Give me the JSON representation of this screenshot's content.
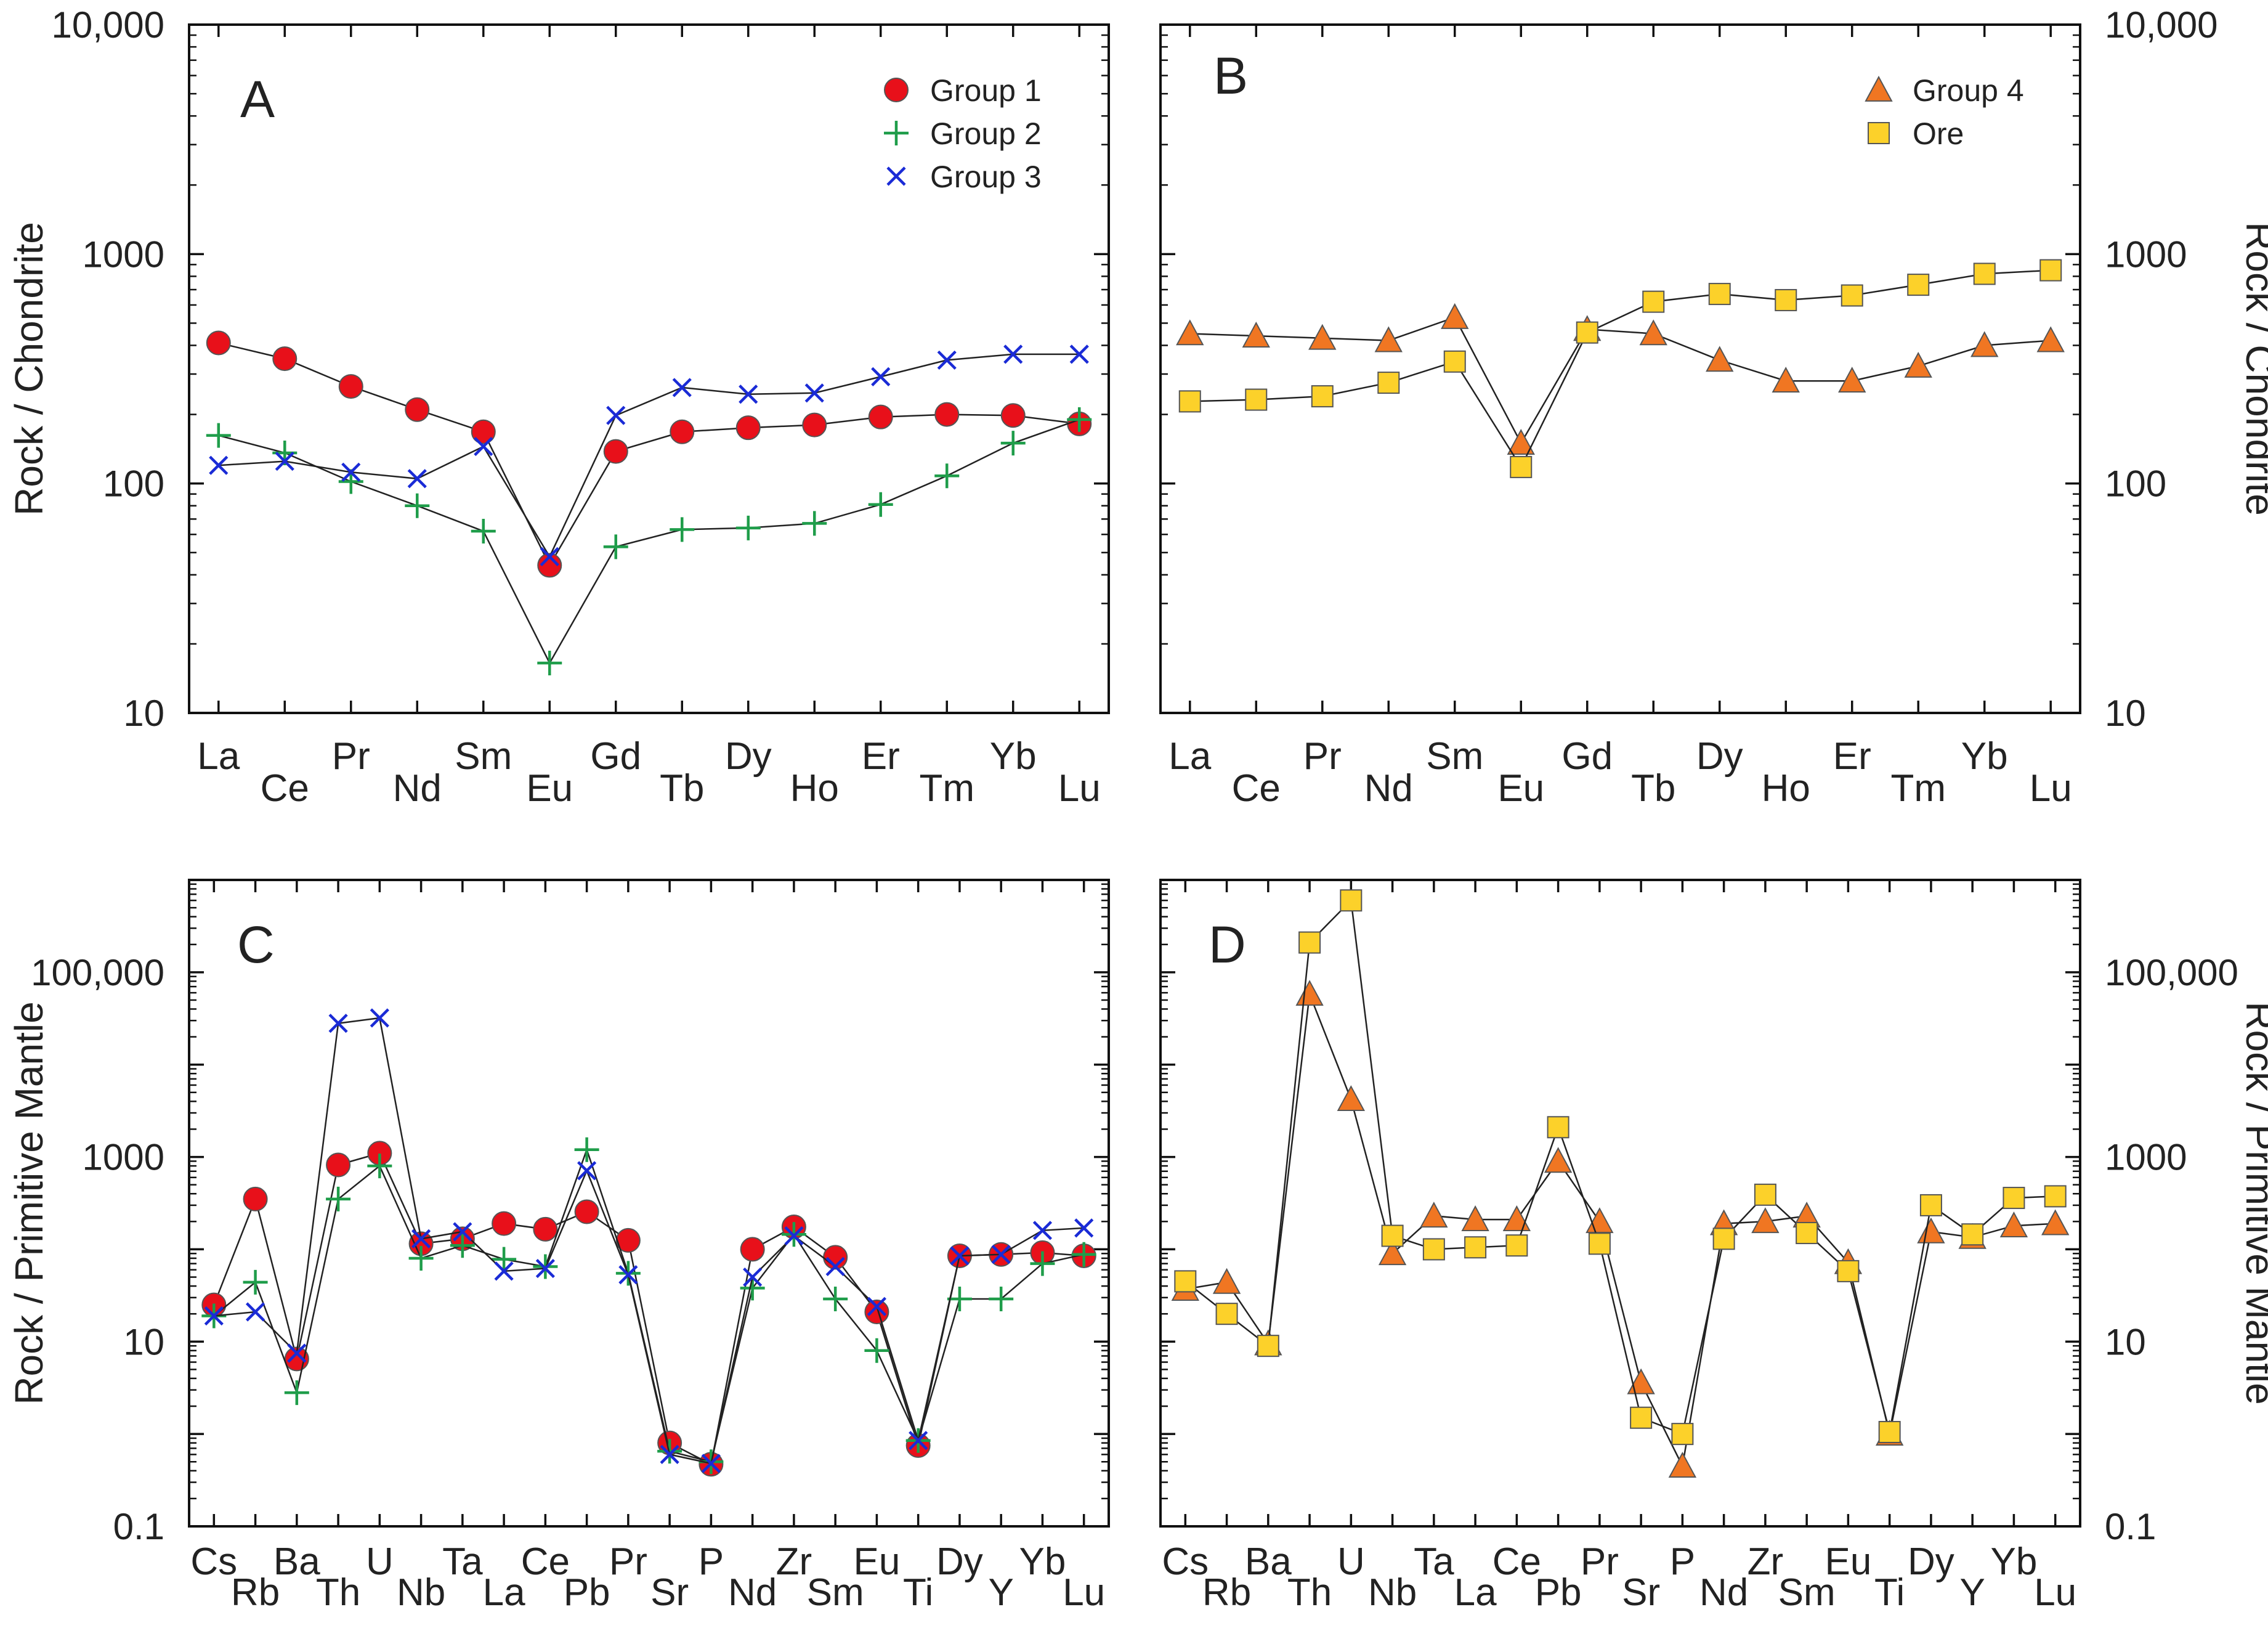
{
  "chart_data": [
    {
      "type": "line",
      "panel_label": "A",
      "ylabel": "Rock / Chondrite",
      "ylabel_side": "left",
      "y_scale": "log",
      "ylim": [
        10,
        10000
      ],
      "y_ticks": [
        10,
        100,
        1000,
        10000
      ],
      "y_tick_labels": [
        "10",
        "100",
        "1000",
        "10,000"
      ],
      "categories": [
        "La",
        "Ce",
        "Pr",
        "Nd",
        "Sm",
        "Eu",
        "Gd",
        "Tb",
        "Dy",
        "Ho",
        "Er",
        "Tm",
        "Yb",
        "Lu"
      ],
      "legend_position": "top-right",
      "series": [
        {
          "name": "Group 1",
          "marker": "circle",
          "color": "#e8101a",
          "values": [
            410,
            350,
            265,
            210,
            168,
            44,
            138,
            168,
            175,
            180,
            195,
            200,
            198,
            182
          ]
        },
        {
          "name": "Group 2",
          "marker": "plus",
          "color": "#1f9d4a",
          "values": [
            162,
            136,
            102,
            80,
            62,
            16.5,
            53,
            63,
            64,
            67,
            81,
            108,
            150,
            190
          ]
        },
        {
          "name": "Group 3",
          "marker": "x",
          "color": "#1a2bd6",
          "values": [
            120,
            125,
            112,
            105,
            145,
            48,
            198,
            262,
            245,
            248,
            292,
            345,
            366,
            366
          ]
        }
      ]
    },
    {
      "type": "line",
      "panel_label": "B",
      "ylabel": "Rock / Chondrite",
      "ylabel_side": "right",
      "y_scale": "log",
      "ylim": [
        10,
        10000
      ],
      "y_ticks": [
        10,
        100,
        1000,
        10000
      ],
      "y_tick_labels": [
        "10",
        "100",
        "1000",
        "10,000"
      ],
      "categories": [
        "La",
        "Ce",
        "Pr",
        "Nd",
        "Sm",
        "Eu",
        "Gd",
        "Tb",
        "Dy",
        "Ho",
        "Er",
        "Tm",
        "Yb",
        "Lu"
      ],
      "legend_position": "top-right",
      "series": [
        {
          "name": "Group 4",
          "marker": "triangle",
          "color": "#f07622",
          "values": [
            450,
            440,
            430,
            420,
            530,
            150,
            470,
            450,
            345,
            280,
            280,
            325,
            400,
            420
          ]
        },
        {
          "name": "Ore",
          "marker": "square",
          "color": "#fcd12a",
          "values": [
            228,
            232,
            240,
            275,
            340,
            118,
            455,
            620,
            670,
            630,
            660,
            735,
            820,
            850
          ]
        }
      ]
    },
    {
      "type": "line",
      "panel_label": "C",
      "ylabel": "Rock / Primitive Mantle",
      "ylabel_side": "left",
      "y_scale": "log",
      "ylim": [
        0.1,
        1000000
      ],
      "y_ticks": [
        0.1,
        10,
        1000,
        100000
      ],
      "y_tick_labels": [
        "0.1",
        "10",
        "1000",
        "100,000"
      ],
      "categories": [
        "Cs",
        "Rb",
        "Ba",
        "Th",
        "U",
        "Nb",
        "Ta",
        "La",
        "Ce",
        "Pb",
        "Pr",
        "Sr",
        "P",
        "Nd",
        "Zr",
        "Sm",
        "Eu",
        "Ti",
        "Dy",
        "Y",
        "Yb",
        "Lu"
      ],
      "series": [
        {
          "name": "Group 1",
          "marker": "circle",
          "color": "#e8101a",
          "values": [
            25,
            350,
            6.5,
            820,
            1100,
            115,
            130,
            190,
            165,
            255,
            125,
            0.8,
            0.47,
            100,
            175,
            82,
            21,
            0.75,
            85,
            88,
            92,
            85
          ]
        },
        {
          "name": "Group 2",
          "marker": "plus",
          "color": "#1f9d4a",
          "values": [
            19,
            44,
            2.8,
            350,
            800,
            80,
            110,
            78,
            65,
            1200,
            55,
            0.65,
            0.5,
            38,
            145,
            29,
            8,
            0.85,
            29,
            29,
            70,
            88
          ]
        },
        {
          "name": "Group 3",
          "marker": "x",
          "color": "#1a2bd6",
          "values": [
            19,
            21,
            7.5,
            28000,
            32000,
            130,
            155,
            58,
            62,
            710,
            53,
            0.6,
            0.48,
            50,
            140,
            65,
            24,
            0.85,
            85,
            88,
            160,
            170
          ]
        }
      ]
    },
    {
      "type": "line",
      "panel_label": "D",
      "ylabel": "Rock / Primitive Mantle",
      "ylabel_side": "right",
      "y_scale": "log",
      "ylim": [
        0.1,
        1000000
      ],
      "y_ticks": [
        0.1,
        10,
        1000,
        100000
      ],
      "y_tick_labels": [
        "0.1",
        "10",
        "1000",
        "100,000"
      ],
      "categories": [
        "Cs",
        "Rb",
        "Ba",
        "Th",
        "U",
        "Nb",
        "Ta",
        "La",
        "Ce",
        "Pb",
        "Pr",
        "Sr",
        "P",
        "Nd",
        "Zr",
        "Sm",
        "Eu",
        "Ti",
        "Dy",
        "Y",
        "Yb",
        "Lu"
      ],
      "series": [
        {
          "name": "Group 4",
          "marker": "triangle",
          "color": "#f07622",
          "values": [
            37,
            44,
            9.5,
            58000,
            4200,
            90,
            230,
            210,
            210,
            900,
            200,
            3.6,
            0.45,
            190,
            200,
            230,
            72,
            1,
            155,
            135,
            180,
            190
          ]
        },
        {
          "name": "Ore",
          "marker": "square",
          "color": "#fcd12a",
          "values": [
            45,
            20,
            9,
            210000,
            600000,
            140,
            100,
            105,
            110,
            2100,
            115,
            1.5,
            1.0,
            130,
            390,
            150,
            58,
            1.05,
            300,
            145,
            360,
            375
          ]
        }
      ]
    }
  ]
}
